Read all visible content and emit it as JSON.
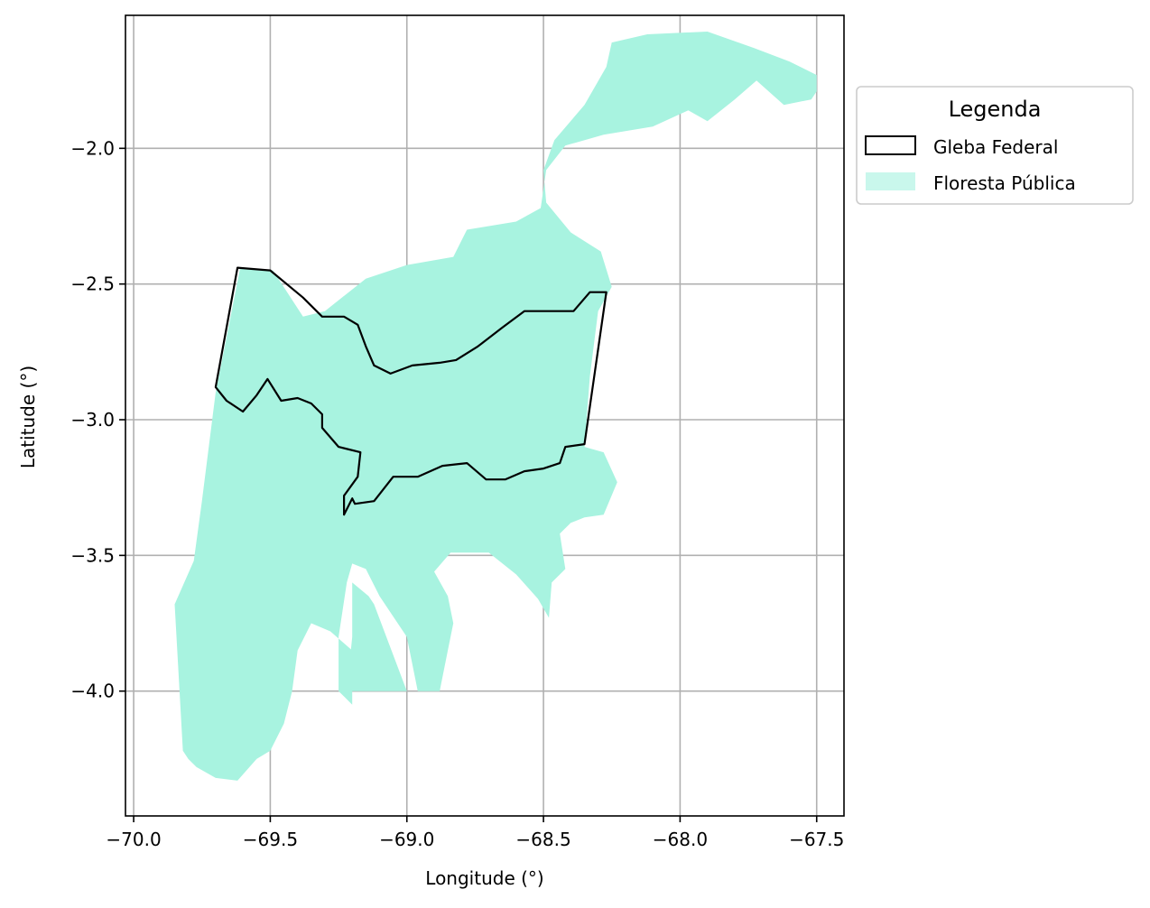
{
  "chart_data": {
    "type": "map",
    "xlabel": "Longitude (°)",
    "ylabel": "Latitude (°)",
    "xlim": [
      -70.03,
      -67.4
    ],
    "ylim": [
      -4.46,
      -1.51
    ],
    "xticks": [
      -70.0,
      -69.5,
      -69.0,
      -68.5,
      -68.0,
      -67.5
    ],
    "xtick_labels": [
      "−70.0",
      "−69.5",
      "−69.0",
      "−68.5",
      "−68.0",
      "−67.5"
    ],
    "yticks": [
      -2.0,
      -2.5,
      -3.0,
      -3.5,
      -4.0
    ],
    "ytick_labels": [
      "−2.0",
      "−2.5",
      "−3.0",
      "−3.5",
      "−4.0"
    ],
    "grid": true,
    "legend": {
      "title": "Legenda",
      "placement": "outside-right-top",
      "entries": [
        {
          "label": "Gleba Federal",
          "style": "outline",
          "color": "#000000"
        },
        {
          "label": "Floresta Pública",
          "style": "fill",
          "color": "#a8f3e0"
        }
      ]
    },
    "layers": [
      {
        "name": "Floresta Pública",
        "color": "#a8f3e0",
        "polygons": [
          [
            [
              -69.7,
              -2.9
            ],
            [
              -69.61,
              -2.44
            ],
            [
              -69.49,
              -2.45
            ],
            [
              -69.38,
              -2.62
            ],
            [
              -69.3,
              -2.6
            ],
            [
              -69.15,
              -2.48
            ],
            [
              -69.0,
              -2.43
            ],
            [
              -68.83,
              -2.4
            ],
            [
              -68.78,
              -2.3
            ],
            [
              -68.6,
              -2.27
            ],
            [
              -68.51,
              -2.22
            ],
            [
              -68.49,
              -2.08
            ],
            [
              -68.42,
              -1.99
            ],
            [
              -68.28,
              -1.95
            ],
            [
              -68.1,
              -1.92
            ],
            [
              -67.97,
              -1.86
            ],
            [
              -67.9,
              -1.9
            ],
            [
              -67.8,
              -1.82
            ],
            [
              -67.72,
              -1.75
            ],
            [
              -67.62,
              -1.84
            ],
            [
              -67.52,
              -1.82
            ],
            [
              -67.5,
              -1.79
            ],
            [
              -67.5,
              -1.73
            ],
            [
              -67.6,
              -1.68
            ],
            [
              -67.73,
              -1.63
            ],
            [
              -67.9,
              -1.57
            ],
            [
              -68.12,
              -1.58
            ],
            [
              -68.25,
              -1.61
            ],
            [
              -68.27,
              -1.7
            ],
            [
              -68.35,
              -1.84
            ],
            [
              -68.46,
              -1.97
            ],
            [
              -68.5,
              -2.08
            ],
            [
              -68.49,
              -2.2
            ],
            [
              -68.4,
              -2.31
            ],
            [
              -68.29,
              -2.38
            ],
            [
              -68.25,
              -2.51
            ],
            [
              -68.3,
              -2.6
            ],
            [
              -68.33,
              -2.84
            ],
            [
              -68.35,
              -3.1
            ],
            [
              -68.28,
              -3.12
            ],
            [
              -68.23,
              -3.23
            ],
            [
              -68.28,
              -3.35
            ],
            [
              -68.35,
              -3.36
            ],
            [
              -68.4,
              -3.38
            ],
            [
              -68.44,
              -3.42
            ],
            [
              -68.42,
              -3.55
            ],
            [
              -68.47,
              -3.6
            ],
            [
              -68.48,
              -3.73
            ],
            [
              -68.52,
              -3.66
            ],
            [
              -68.6,
              -3.57
            ],
            [
              -68.7,
              -3.49
            ],
            [
              -68.84,
              -3.49
            ],
            [
              -68.9,
              -3.56
            ],
            [
              -68.85,
              -3.65
            ],
            [
              -68.83,
              -3.75
            ],
            [
              -68.85,
              -3.85
            ],
            [
              -68.88,
              -4.0
            ],
            [
              -68.96,
              -4.0
            ],
            [
              -69.0,
              -3.8
            ],
            [
              -69.1,
              -3.65
            ],
            [
              -69.15,
              -3.55
            ],
            [
              -69.2,
              -3.53
            ],
            [
              -69.22,
              -3.6
            ],
            [
              -69.25,
              -3.8
            ],
            [
              -69.25,
              -4.0
            ],
            [
              -69.2,
              -4.05
            ],
            [
              -69.2,
              -3.85
            ],
            [
              -69.28,
              -3.78
            ],
            [
              -69.35,
              -3.75
            ],
            [
              -69.4,
              -3.85
            ],
            [
              -69.42,
              -4.0
            ],
            [
              -69.45,
              -4.12
            ],
            [
              -69.5,
              -4.22
            ],
            [
              -69.55,
              -4.25
            ],
            [
              -69.62,
              -4.33
            ],
            [
              -69.7,
              -4.32
            ],
            [
              -69.77,
              -4.28
            ],
            [
              -69.8,
              -4.25
            ],
            [
              -69.82,
              -4.22
            ],
            [
              -69.85,
              -3.68
            ],
            [
              -69.78,
              -3.52
            ],
            [
              -69.75,
              -3.3
            ]
          ],
          [
            [
              -69.2,
              -3.6
            ],
            [
              -69.14,
              -3.65
            ],
            [
              -69.12,
              -3.68
            ],
            [
              -69.0,
              -4.0
            ],
            [
              -69.22,
              -4.0
            ],
            [
              -69.2,
              -3.8
            ]
          ]
        ]
      },
      {
        "name": "Gleba Federal",
        "color": "#000000",
        "polygons": [
          [
            [
              -69.7,
              -2.88
            ],
            [
              -69.62,
              -2.44
            ],
            [
              -69.5,
              -2.45
            ],
            [
              -69.44,
              -2.5
            ],
            [
              -69.38,
              -2.55
            ],
            [
              -69.31,
              -2.62
            ],
            [
              -69.23,
              -2.62
            ],
            [
              -69.18,
              -2.65
            ],
            [
              -69.15,
              -2.73
            ],
            [
              -69.12,
              -2.8
            ],
            [
              -69.06,
              -2.83
            ],
            [
              -68.98,
              -2.8
            ],
            [
              -68.88,
              -2.79
            ],
            [
              -68.82,
              -2.78
            ],
            [
              -68.74,
              -2.73
            ],
            [
              -68.65,
              -2.66
            ],
            [
              -68.57,
              -2.6
            ],
            [
              -68.48,
              -2.6
            ],
            [
              -68.39,
              -2.6
            ],
            [
              -68.33,
              -2.53
            ],
            [
              -68.27,
              -2.53
            ],
            [
              -68.35,
              -3.09
            ],
            [
              -68.42,
              -3.1
            ],
            [
              -68.44,
              -3.16
            ],
            [
              -68.5,
              -3.18
            ],
            [
              -68.57,
              -3.19
            ],
            [
              -68.64,
              -3.22
            ],
            [
              -68.71,
              -3.22
            ],
            [
              -68.78,
              -3.16
            ],
            [
              -68.87,
              -3.17
            ],
            [
              -68.96,
              -3.21
            ],
            [
              -69.05,
              -3.21
            ],
            [
              -69.12,
              -3.3
            ],
            [
              -69.19,
              -3.31
            ],
            [
              -69.2,
              -3.29
            ],
            [
              -69.23,
              -3.35
            ],
            [
              -69.23,
              -3.28
            ],
            [
              -69.18,
              -3.21
            ],
            [
              -69.17,
              -3.12
            ],
            [
              -69.25,
              -3.1
            ],
            [
              -69.31,
              -3.03
            ],
            [
              -69.31,
              -2.98
            ],
            [
              -69.35,
              -2.94
            ],
            [
              -69.4,
              -2.92
            ],
            [
              -69.46,
              -2.93
            ],
            [
              -69.51,
              -2.85
            ],
            [
              -69.55,
              -2.91
            ],
            [
              -69.6,
              -2.97
            ],
            [
              -69.66,
              -2.93
            ]
          ]
        ]
      }
    ]
  }
}
